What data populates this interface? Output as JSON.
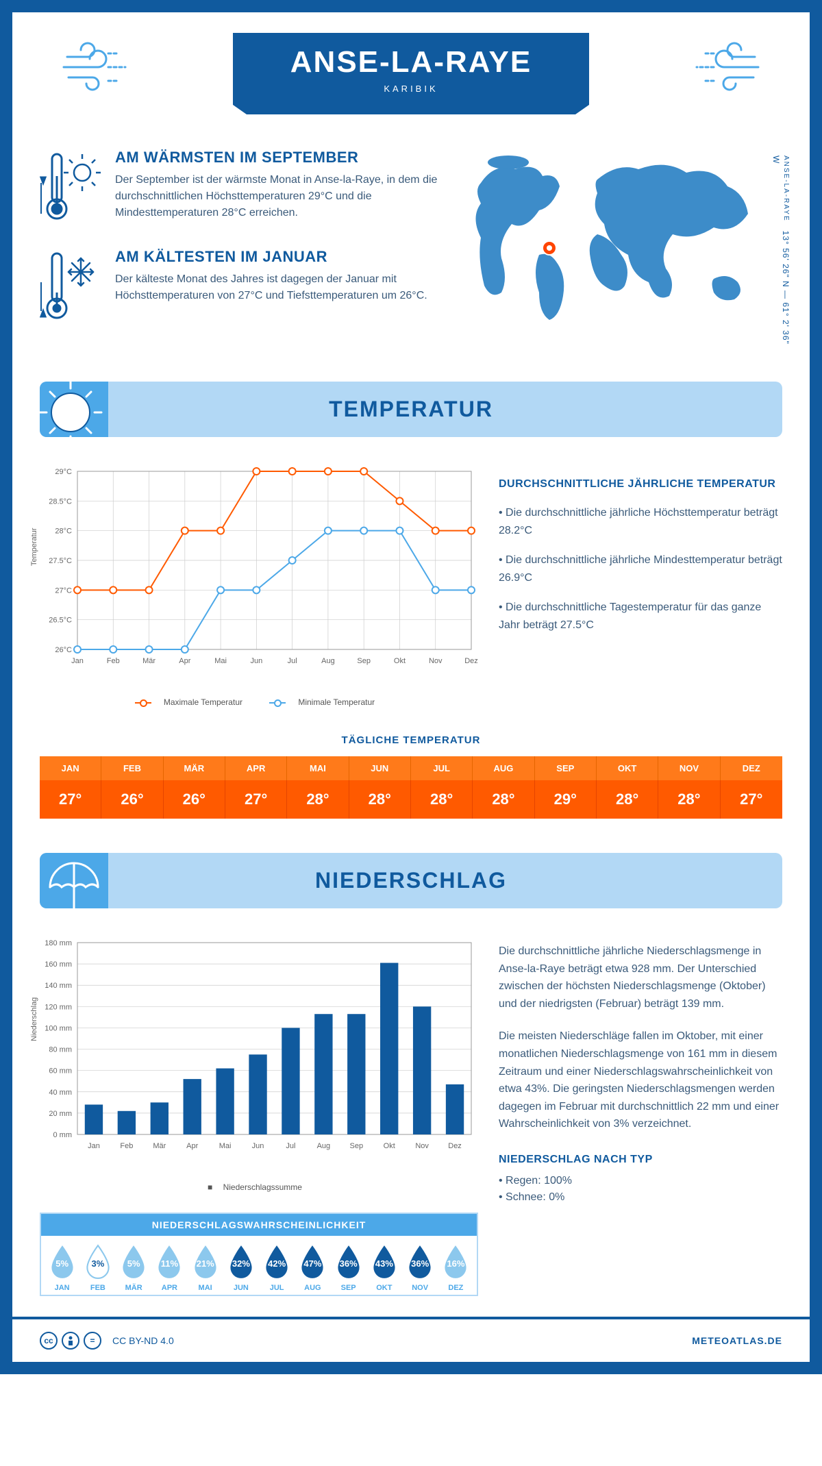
{
  "header": {
    "title": "ANSE-LA-RAYE",
    "subtitle": "KARIBIK"
  },
  "coords": {
    "location": "ANSE-LA-RAYE",
    "value": "13° 56' 26\" N — 61° 2' 36\" W"
  },
  "facts": {
    "warm": {
      "title": "AM WÄRMSTEN IM SEPTEMBER",
      "body": "Der September ist der wärmste Monat in Anse-la-Raye, in dem die durchschnittlichen Höchsttemperaturen 29°C und die Mindesttemperaturen 28°C erreichen."
    },
    "cold": {
      "title": "AM KÄLTESTEN IM JANUAR",
      "body": "Der kälteste Monat des Jahres ist dagegen der Januar mit Höchsttemperaturen von 27°C und Tiefsttemperaturen um 26°C."
    }
  },
  "sections": {
    "temperature": "TEMPERATUR",
    "precipitation": "NIEDERSCHLAG"
  },
  "temp_chart": {
    "type": "line",
    "months": [
      "Jan",
      "Feb",
      "Mär",
      "Apr",
      "Mai",
      "Jun",
      "Jul",
      "Aug",
      "Sep",
      "Okt",
      "Nov",
      "Dez"
    ],
    "max_series": [
      27,
      27,
      27,
      28,
      28,
      29,
      29,
      29,
      29,
      28.5,
      28,
      28
    ],
    "min_series": [
      26,
      26,
      26,
      26,
      27,
      27,
      27.5,
      28,
      28,
      28,
      27,
      27
    ],
    "ylim": [
      26,
      29
    ],
    "yticks": [
      "26°C",
      "26.5°C",
      "27°C",
      "27.5°C",
      "28°C",
      "28.5°C",
      "29°C"
    ],
    "ylabel": "Temperatur",
    "max_label": "Maximale Temperatur",
    "min_label": "Minimale Temperatur",
    "max_color": "#ff5a00",
    "min_color": "#4ca8e8",
    "grid_color": "#cccccc",
    "line_width": 2,
    "marker_size": 5
  },
  "temp_info": {
    "heading": "DURCHSCHNITTLICHE JÄHRLICHE TEMPERATUR",
    "p1": "• Die durchschnittliche jährliche Höchsttemperatur beträgt 28.2°C",
    "p2": "• Die durchschnittliche jährliche Mindesttemperatur beträgt 26.9°C",
    "p3": "• Die durchschnittliche Tagestemperatur für das ganze Jahr beträgt 27.5°C"
  },
  "daily": {
    "title": "TÄGLICHE TEMPERATUR",
    "months": [
      "JAN",
      "FEB",
      "MÄR",
      "APR",
      "MAI",
      "JUN",
      "JUL",
      "AUG",
      "SEP",
      "OKT",
      "NOV",
      "DEZ"
    ],
    "values": [
      "27°",
      "26°",
      "26°",
      "27°",
      "28°",
      "28°",
      "28°",
      "28°",
      "29°",
      "28°",
      "28°",
      "27°"
    ],
    "head_bg": "#ff7a1a",
    "val_bg": "#ff5a00"
  },
  "precip_chart": {
    "type": "bar",
    "months": [
      "Jan",
      "Feb",
      "Mär",
      "Apr",
      "Mai",
      "Jun",
      "Jul",
      "Aug",
      "Sep",
      "Okt",
      "Nov",
      "Dez"
    ],
    "values": [
      28,
      22,
      30,
      52,
      62,
      75,
      100,
      113,
      113,
      161,
      120,
      47
    ],
    "ylim": [
      0,
      180
    ],
    "ytick_step": 20,
    "ylabel": "Niederschlag",
    "bar_color": "#105a9e",
    "grid_color": "#cccccc",
    "legend_label": "Niederschlagssumme",
    "bar_width": 0.55
  },
  "precip_text": {
    "p1": "Die durchschnittliche jährliche Niederschlagsmenge in Anse-la-Raye beträgt etwa 928 mm. Der Unterschied zwischen der höchsten Niederschlagsmenge (Oktober) und der niedrigsten (Februar) beträgt 139 mm.",
    "p2": "Die meisten Niederschläge fallen im Oktober, mit einer monatlichen Niederschlagsmenge von 161 mm in diesem Zeitraum und einer Niederschlagswahrscheinlichkeit von etwa 43%. Die geringsten Niederschlagsmengen werden dagegen im Februar mit durchschnittlich 22 mm und einer Wahrscheinlichkeit von 3% verzeichnet.",
    "type_heading": "NIEDERSCHLAG NACH TYP",
    "type1": "• Regen: 100%",
    "type2": "• Schnee: 0%"
  },
  "probability": {
    "title": "NIEDERSCHLAGSWAHRSCHEINLICHKEIT",
    "months": [
      "JAN",
      "FEB",
      "MÄR",
      "APR",
      "MAI",
      "JUN",
      "JUL",
      "AUG",
      "SEP",
      "OKT",
      "NOV",
      "DEZ"
    ],
    "values": [
      "5%",
      "3%",
      "5%",
      "11%",
      "21%",
      "32%",
      "42%",
      "47%",
      "36%",
      "43%",
      "36%",
      "16%"
    ],
    "raw": [
      5,
      3,
      5,
      11,
      21,
      32,
      42,
      47,
      36,
      43,
      36,
      16
    ],
    "light_fill": "#8cc8ed",
    "dark_fill": "#105a9e",
    "min_fill": "#ffffff",
    "threshold_dark": 30
  },
  "footer": {
    "license": "CC BY-ND 4.0",
    "brand": "METEOATLAS.DE"
  },
  "colors": {
    "primary": "#105a9e",
    "light_blue": "#b2d8f5",
    "mid_blue": "#4ca8e8",
    "orange": "#ff5a00"
  }
}
